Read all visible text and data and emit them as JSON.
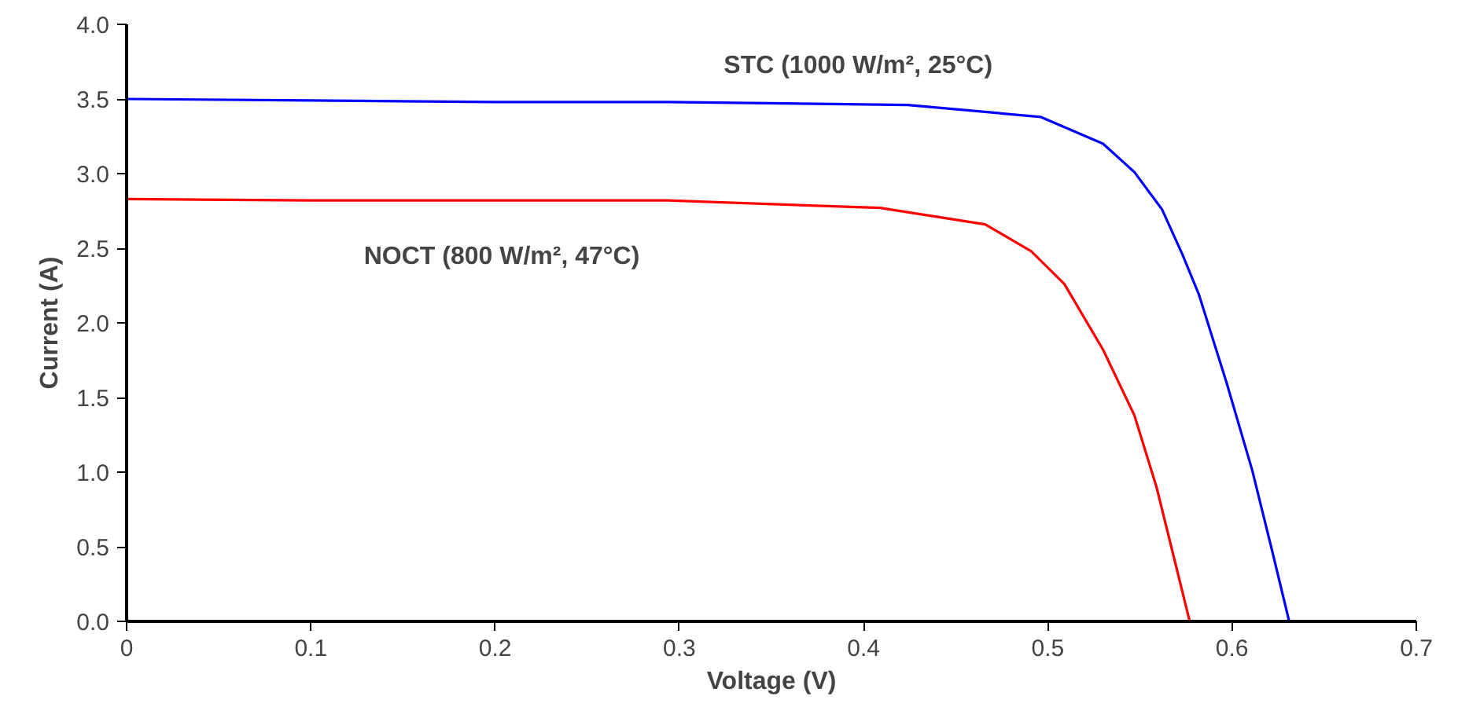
{
  "chart_data": {
    "type": "line",
    "xlabel": "Voltage (V)",
    "ylabel": "Current (A)",
    "xlim": [
      0,
      0.7
    ],
    "xticks": [
      0,
      0.1,
      0.2,
      0.3,
      0.4,
      0.5,
      0.6,
      0.7
    ],
    "ylim": [
      0,
      4.0
    ],
    "yticks": [
      {
        "value": 0,
        "label": "0.0"
      },
      0.5,
      {
        "value": 1,
        "label": "1.0"
      },
      1.5,
      {
        "value": 2,
        "label": "2.0"
      },
      2.5,
      {
        "value": 3,
        "label": "3.0"
      },
      3.5,
      {
        "value": 4,
        "label": "4.0"
      }
    ],
    "grid": false,
    "marker": "none",
    "line_style": "solid",
    "series": [
      {
        "color": "#0000ff",
        "x": [
          0,
          0.1,
          0.2,
          0.294,
          0.424,
          0.496,
          0.53,
          0.547,
          0.562,
          0.573,
          0.582,
          0.597,
          0.611,
          0.622,
          0.631
        ],
        "values": [
          3.5,
          3.49,
          3.48,
          3.48,
          3.46,
          3.38,
          3.2,
          3.01,
          2.76,
          2.46,
          2.19,
          1.6,
          1.01,
          0.46,
          0
        ]
      },
      {
        "color": "#ff0000",
        "x": [
          0,
          0.1,
          0.2,
          0.294,
          0.409,
          0.466,
          0.491,
          0.509,
          0.53,
          0.547,
          0.559,
          0.57,
          0.577
        ],
        "values": [
          2.83,
          2.82,
          2.82,
          2.82,
          2.77,
          2.66,
          2.48,
          2.26,
          1.82,
          1.38,
          0.9,
          0.35,
          0
        ]
      }
    ],
    "annotations": [
      "STC (1000 W/m², 25°C)",
      "NOCT (800 W/m², 47°C)"
    ]
  }
}
